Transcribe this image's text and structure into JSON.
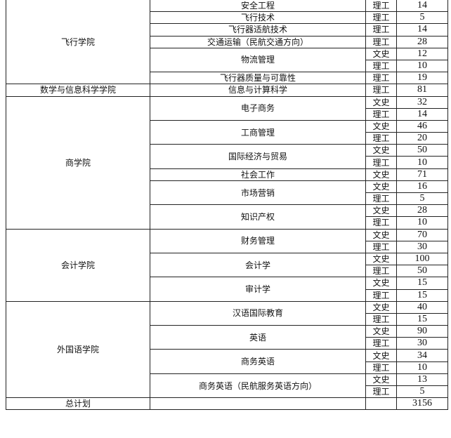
{
  "colleges": [
    {
      "name": "飞行学院",
      "majors": [
        {
          "name": "安全工程",
          "tracks": [
            {
              "type": "理工",
              "count": "14"
            }
          ]
        },
        {
          "name": "飞行技术",
          "tracks": [
            {
              "type": "理工",
              "count": "5"
            }
          ]
        },
        {
          "name": "飞行器适航技术",
          "tracks": [
            {
              "type": "理工",
              "count": "14"
            }
          ]
        },
        {
          "name": "交通运输（民航交通方向）",
          "tracks": [
            {
              "type": "理工",
              "count": "28"
            }
          ]
        },
        {
          "name": "物流管理",
          "tracks": [
            {
              "type": "文史",
              "count": "12"
            },
            {
              "type": "理工",
              "count": "10"
            }
          ]
        },
        {
          "name": "飞行器质量与可靠性",
          "tracks": [
            {
              "type": "理工",
              "count": "19"
            }
          ]
        }
      ]
    },
    {
      "name": "数学与信息科学学院",
      "majors": [
        {
          "name": "信息与计算科学",
          "tracks": [
            {
              "type": "理工",
              "count": "81"
            }
          ]
        }
      ]
    },
    {
      "name": "商学院",
      "majors": [
        {
          "name": "电子商务",
          "tracks": [
            {
              "type": "文史",
              "count": "32"
            },
            {
              "type": "理工",
              "count": "14"
            }
          ]
        },
        {
          "name": "工商管理",
          "tracks": [
            {
              "type": "文史",
              "count": "46"
            },
            {
              "type": "理工",
              "count": "20"
            }
          ]
        },
        {
          "name": "国际经济与贸易",
          "tracks": [
            {
              "type": "文史",
              "count": "50"
            },
            {
              "type": "理工",
              "count": "10"
            }
          ]
        },
        {
          "name": "社会工作",
          "tracks": [
            {
              "type": "文史",
              "count": "71"
            }
          ]
        },
        {
          "name": "市场营销",
          "tracks": [
            {
              "type": "文史",
              "count": "16"
            },
            {
              "type": "理工",
              "count": "5"
            }
          ]
        },
        {
          "name": "知识产权",
          "tracks": [
            {
              "type": "文史",
              "count": "28"
            },
            {
              "type": "理工",
              "count": "10"
            }
          ]
        }
      ]
    },
    {
      "name": "会计学院",
      "majors": [
        {
          "name": "财务管理",
          "tracks": [
            {
              "type": "文史",
              "count": "70"
            },
            {
              "type": "理工",
              "count": "30"
            }
          ]
        },
        {
          "name": "会计学",
          "tracks": [
            {
              "type": "文史",
              "count": "100"
            },
            {
              "type": "理工",
              "count": "50"
            }
          ]
        },
        {
          "name": "审计学",
          "tracks": [
            {
              "type": "文史",
              "count": "15"
            },
            {
              "type": "理工",
              "count": "15"
            }
          ]
        }
      ]
    },
    {
      "name": "外国语学院",
      "majors": [
        {
          "name": "汉语国际教育",
          "tracks": [
            {
              "type": "文史",
              "count": "40"
            },
            {
              "type": "理工",
              "count": "15"
            }
          ]
        },
        {
          "name": "英语",
          "tracks": [
            {
              "type": "文史",
              "count": "90"
            },
            {
              "type": "理工",
              "count": "30"
            }
          ]
        },
        {
          "name": "商务英语",
          "tracks": [
            {
              "type": "文史",
              "count": "34"
            },
            {
              "type": "理工",
              "count": "10"
            }
          ]
        },
        {
          "name": "商务英语（民航服务英语方向）",
          "tracks": [
            {
              "type": "文史",
              "count": "13"
            },
            {
              "type": "理工",
              "count": "5"
            }
          ]
        }
      ]
    }
  ],
  "total": {
    "label": "总计划",
    "count": "3156"
  }
}
